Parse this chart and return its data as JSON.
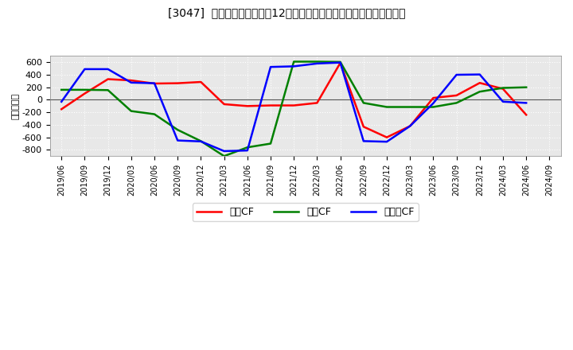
{
  "title": "[3047]  キャッシュフローの12か月移動合計の対前年同期増減額の推移",
  "ylabel": "（百万円）",
  "background_color": "#ffffff",
  "plot_background_color": "#e8e8e8",
  "grid_color": "#ffffff",
  "x_labels": [
    "2019/06",
    "2019/09",
    "2019/12",
    "2020/03",
    "2020/06",
    "2020/09",
    "2020/12",
    "2021/03",
    "2021/06",
    "2021/09",
    "2021/12",
    "2022/03",
    "2022/06",
    "2022/09",
    "2022/12",
    "2023/03",
    "2023/06",
    "2023/09",
    "2023/12",
    "2024/03",
    "2024/06",
    "2024/09"
  ],
  "operating_cf": [
    -150,
    100,
    330,
    310,
    260,
    265,
    285,
    -70,
    -100,
    -90,
    -90,
    -50,
    590,
    -430,
    -600,
    -420,
    30,
    70,
    270,
    175,
    -240,
    null
  ],
  "investing_cf": [
    160,
    160,
    155,
    -180,
    -230,
    -480,
    -660,
    -900,
    -760,
    -700,
    610,
    610,
    605,
    -50,
    -115,
    -115,
    -115,
    -50,
    130,
    190,
    200,
    null
  ],
  "free_cf": [
    -30,
    490,
    490,
    275,
    265,
    -650,
    -665,
    -820,
    -810,
    525,
    535,
    580,
    595,
    -660,
    -670,
    -420,
    -55,
    400,
    405,
    -30,
    -50,
    null
  ],
  "ylim": [
    -900,
    700
  ],
  "yticks": [
    -800,
    -600,
    -400,
    -200,
    0,
    200,
    400,
    600
  ],
  "series_colors": {
    "operating": "#ff0000",
    "investing": "#008000",
    "free": "#0000ff"
  },
  "legend_labels": [
    "営業CF",
    "投資CF",
    "フリーCF"
  ],
  "line_width": 1.8
}
